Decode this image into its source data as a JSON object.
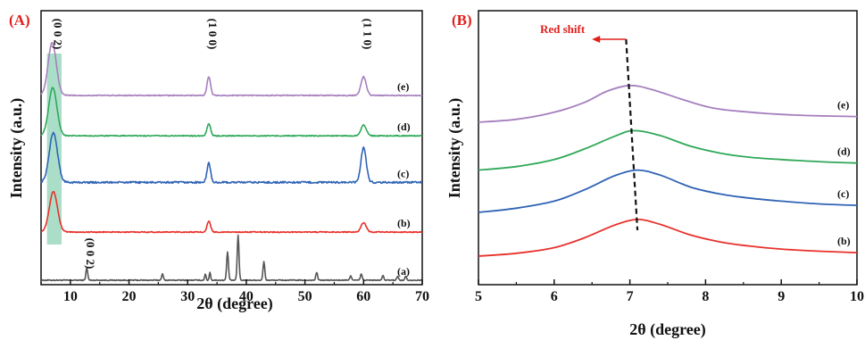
{
  "chart_data": [
    {
      "panel_label": "(A)",
      "type": "line",
      "xlabel": "2θ (degree)",
      "ylabel": "Intensity (a.u.)",
      "xlim": [
        5,
        70
      ],
      "xticks": [
        "10",
        "20",
        "30",
        "40",
        "50",
        "60",
        "70"
      ],
      "highlight_band": [
        6,
        8.5
      ],
      "peak_labels": [
        {
          "text": "(0 0 2)",
          "x": 7.2,
          "rotated": true
        },
        {
          "text": "(1 0 0)",
          "x": 33.6,
          "rotated": true
        },
        {
          "text": "(1 1 0)",
          "x": 60.0,
          "rotated": true
        },
        {
          "text": "(0 0 2)",
          "x": 12.8,
          "rotated": true,
          "small": true
        }
      ],
      "series": [
        {
          "name": "(a)",
          "color": "#555555",
          "baseline": 0.0,
          "noise": 0.006,
          "peaks": [
            [
              12.8,
              0.16,
              0.15
            ],
            [
              25.7,
              0.08,
              0.15
            ],
            [
              33.0,
              0.08,
              0.12
            ],
            [
              33.8,
              0.1,
              0.12
            ],
            [
              36.8,
              0.36,
              0.15
            ],
            [
              38.6,
              0.58,
              0.15
            ],
            [
              43.0,
              0.24,
              0.15
            ],
            [
              52.0,
              0.1,
              0.15
            ],
            [
              57.8,
              0.06,
              0.15
            ],
            [
              59.6,
              0.08,
              0.15
            ],
            [
              63.3,
              0.06,
              0.15
            ],
            [
              65.8,
              0.05,
              0.15
            ],
            [
              67.2,
              0.05,
              0.15
            ]
          ]
        },
        {
          "name": "(b)",
          "color": "#e8312b",
          "baseline": 0.62,
          "noise": 0.006,
          "peaks": [
            [
              7.1,
              0.52,
              0.7
            ],
            [
              33.6,
              0.14,
              0.3
            ],
            [
              60.0,
              0.12,
              0.45
            ]
          ]
        },
        {
          "name": "(c)",
          "color": "#2f63b5",
          "baseline": 1.26,
          "noise": 0.012,
          "peaks": [
            [
              7.1,
              0.64,
              0.7
            ],
            [
              33.6,
              0.25,
              0.3
            ],
            [
              60.0,
              0.45,
              0.45
            ]
          ]
        },
        {
          "name": "(d)",
          "color": "#2fa858",
          "baseline": 1.86,
          "noise": 0.006,
          "peaks": [
            [
              7.0,
              0.62,
              0.7
            ],
            [
              33.6,
              0.16,
              0.3
            ],
            [
              60.0,
              0.14,
              0.45
            ]
          ]
        },
        {
          "name": "(e)",
          "color": "#a67fbe",
          "baseline": 2.38,
          "noise": 0.006,
          "peaks": [
            [
              6.9,
              0.68,
              0.7
            ],
            [
              33.6,
              0.24,
              0.3
            ],
            [
              60.0,
              0.24,
              0.45
            ]
          ]
        }
      ]
    },
    {
      "panel_label": "(B)",
      "type": "line",
      "xlabel": "2θ (degree)",
      "ylabel": "Intensity (a.u.)",
      "xlim": [
        5,
        10
      ],
      "xticks": [
        "5",
        "6",
        "7",
        "8",
        "9",
        "10"
      ],
      "annotation": {
        "text": "Red shift",
        "color": "#e0201c",
        "arrow_to_x": 6.5,
        "arrow_from_x": 6.95
      },
      "shift_line": {
        "top_x": 6.95,
        "bottom_x": 7.1,
        "style": "dashed"
      },
      "series": [
        {
          "name": "(b)",
          "color": "#e8312b",
          "peak_x": 7.1,
          "points": [
            [
              5.0,
              0.0
            ],
            [
              5.5,
              0.04
            ],
            [
              6.0,
              0.12
            ],
            [
              6.4,
              0.26
            ],
            [
              6.8,
              0.44
            ],
            [
              7.1,
              0.52
            ],
            [
              7.4,
              0.45
            ],
            [
              7.8,
              0.3
            ],
            [
              8.2,
              0.2
            ],
            [
              8.6,
              0.14
            ],
            [
              9.0,
              0.1
            ],
            [
              9.5,
              0.07
            ],
            [
              10.0,
              0.05
            ]
          ]
        },
        {
          "name": "(c)",
          "color": "#2f63b5",
          "peak_x": 7.1,
          "points": [
            [
              5.0,
              0.62
            ],
            [
              5.5,
              0.68
            ],
            [
              6.0,
              0.78
            ],
            [
              6.4,
              0.94
            ],
            [
              6.8,
              1.14
            ],
            [
              7.1,
              1.22
            ],
            [
              7.4,
              1.15
            ],
            [
              7.8,
              0.98
            ],
            [
              8.2,
              0.88
            ],
            [
              8.6,
              0.82
            ],
            [
              9.0,
              0.78
            ],
            [
              9.5,
              0.74
            ],
            [
              10.0,
              0.72
            ]
          ]
        },
        {
          "name": "(d)",
          "color": "#2fa858",
          "peak_x": 7.05,
          "points": [
            [
              5.0,
              1.22
            ],
            [
              5.5,
              1.27
            ],
            [
              6.0,
              1.37
            ],
            [
              6.4,
              1.52
            ],
            [
              6.8,
              1.7
            ],
            [
              7.05,
              1.78
            ],
            [
              7.4,
              1.71
            ],
            [
              7.8,
              1.56
            ],
            [
              8.2,
              1.46
            ],
            [
              8.6,
              1.4
            ],
            [
              9.0,
              1.37
            ],
            [
              9.5,
              1.34
            ],
            [
              10.0,
              1.32
            ]
          ]
        },
        {
          "name": "(e)",
          "color": "#a67fbe",
          "peak_x": 7.0,
          "points": [
            [
              5.0,
              1.9
            ],
            [
              5.5,
              1.94
            ],
            [
              6.0,
              2.04
            ],
            [
              6.4,
              2.18
            ],
            [
              6.7,
              2.34
            ],
            [
              7.0,
              2.42
            ],
            [
              7.3,
              2.36
            ],
            [
              7.7,
              2.22
            ],
            [
              8.1,
              2.1
            ],
            [
              8.6,
              2.04
            ],
            [
              9.0,
              2.01
            ],
            [
              9.5,
              1.99
            ],
            [
              10.0,
              1.98
            ]
          ]
        }
      ]
    }
  ]
}
